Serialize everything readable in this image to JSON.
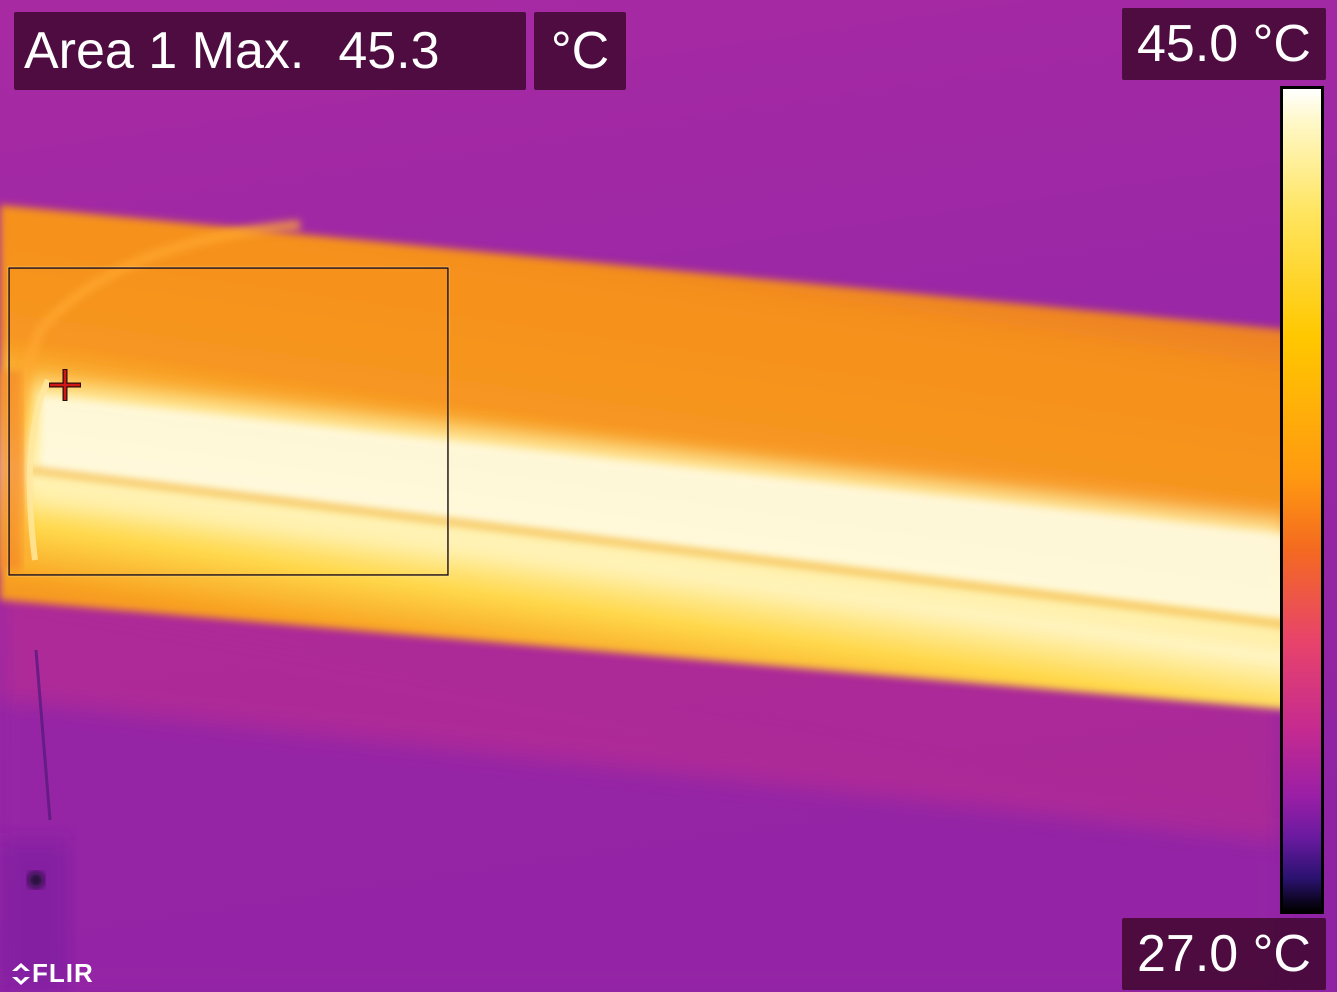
{
  "measurement": {
    "label": "Area 1 Max.",
    "value": "45.3",
    "unit": "°C"
  },
  "scale": {
    "max": "45.0 °C",
    "min": "27.0 °C",
    "palette": "iron"
  },
  "logo": {
    "text": "FLIR"
  },
  "colors": {
    "background_purple": "#a52aa0",
    "hot_white": "#fffbe0",
    "warm_orange": "#f5901a",
    "label_box": "#460a37"
  },
  "icons": {
    "crosshair": "crosshair-icon",
    "logo_mark": "flir-logo-icon"
  }
}
